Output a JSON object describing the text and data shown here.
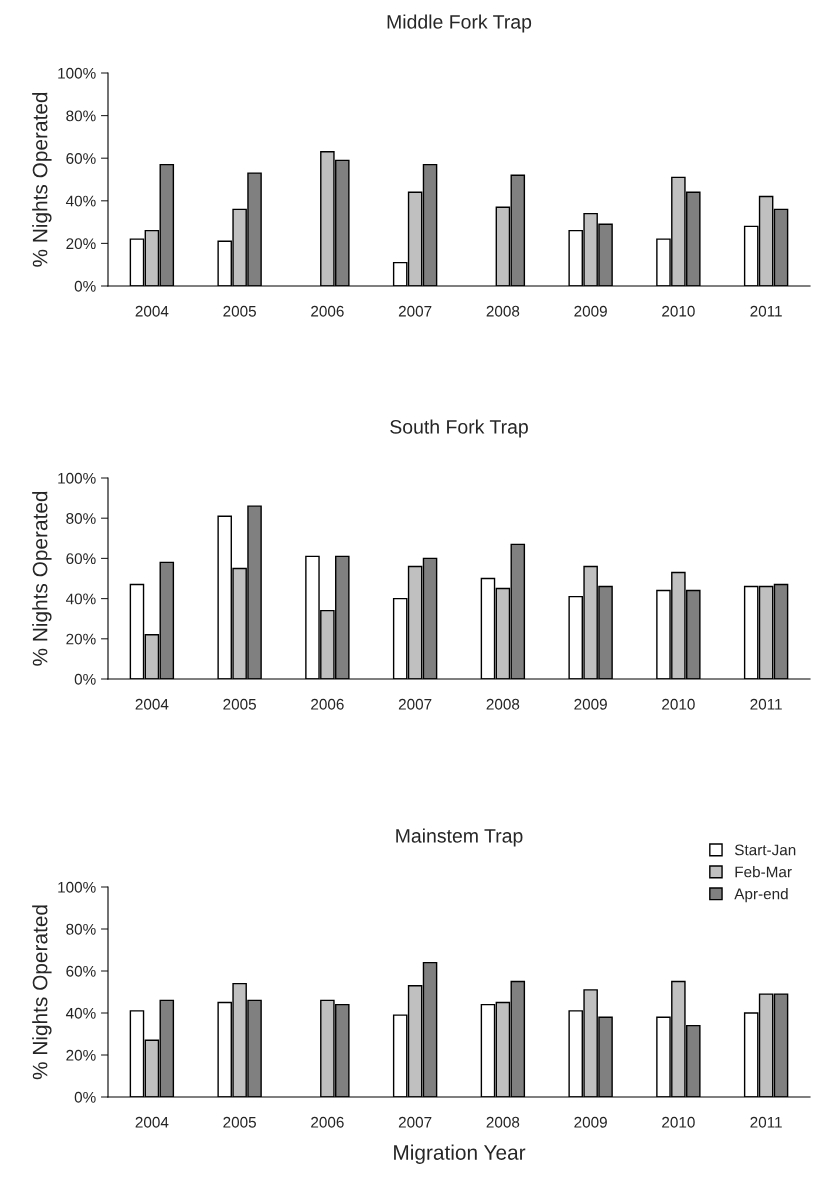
{
  "chart_data": [
    {
      "type": "bar",
      "title": "Middle Fork Trap",
      "ylabel": "% Nights Operated",
      "categories": [
        "2004",
        "2005",
        "2006",
        "2007",
        "2008",
        "2009",
        "2010",
        "2011"
      ],
      "series": [
        {
          "color": "#ffffff",
          "values": [
            22,
            21,
            null,
            11,
            null,
            26,
            22,
            28
          ]
        },
        {
          "color": "#c0c0c0",
          "values": [
            26,
            36,
            63,
            44,
            37,
            34,
            51,
            42
          ]
        },
        {
          "color": "#808080",
          "values": [
            57,
            53,
            59,
            57,
            52,
            29,
            44,
            36
          ]
        }
      ],
      "ylim": [
        0,
        100
      ],
      "yticks": [
        {
          "value": 0,
          "label": "0%"
        },
        {
          "value": 20,
          "label": "20%"
        },
        {
          "value": 40,
          "label": "40%"
        },
        {
          "value": 60,
          "label": "60%"
        },
        {
          "value": 80,
          "label": "80%"
        },
        {
          "value": 100,
          "label": "100%"
        }
      ],
      "grid": false,
      "legend": false
    },
    {
      "type": "bar",
      "title": "South Fork Trap",
      "ylabel": "% Nights Operated",
      "categories": [
        "2004",
        "2005",
        "2006",
        "2007",
        "2008",
        "2009",
        "2010",
        "2011"
      ],
      "series": [
        {
          "color": "#ffffff",
          "values": [
            47,
            81,
            61,
            40,
            50,
            41,
            44,
            46
          ]
        },
        {
          "color": "#c0c0c0",
          "values": [
            22,
            55,
            34,
            56,
            45,
            56,
            53,
            46
          ]
        },
        {
          "color": "#808080",
          "values": [
            58,
            86,
            61,
            60,
            67,
            46,
            44,
            47
          ]
        }
      ],
      "ylim": [
        0,
        100
      ],
      "yticks": [
        {
          "value": 0,
          "label": "0%"
        },
        {
          "value": 20,
          "label": "20%"
        },
        {
          "value": 40,
          "label": "40%"
        },
        {
          "value": 60,
          "label": "60%"
        },
        {
          "value": 80,
          "label": "80%"
        },
        {
          "value": 100,
          "label": "100%"
        }
      ],
      "grid": false,
      "legend": false
    },
    {
      "type": "bar",
      "title": "Mainstem Trap",
      "ylabel": "% Nights Operated",
      "xlabel": "Migration Year",
      "categories": [
        "2004",
        "2005",
        "2006",
        "2007",
        "2008",
        "2009",
        "2010",
        "2011"
      ],
      "series": [
        {
          "name": "Start-Jan",
          "color": "#ffffff",
          "values": [
            41,
            45,
            null,
            39,
            44,
            41,
            38,
            40
          ]
        },
        {
          "name": "Feb-Mar",
          "color": "#c0c0c0",
          "values": [
            27,
            54,
            46,
            53,
            45,
            51,
            55,
            49
          ]
        },
        {
          "name": "Apr-end",
          "color": "#808080",
          "values": [
            46,
            46,
            44,
            64,
            55,
            38,
            34,
            49
          ]
        }
      ],
      "ylim": [
        0,
        100
      ],
      "yticks": [
        {
          "value": 0,
          "label": "0%"
        },
        {
          "value": 20,
          "label": "20%"
        },
        {
          "value": 40,
          "label": "40%"
        },
        {
          "value": 60,
          "label": "60%"
        },
        {
          "value": 80,
          "label": "80%"
        },
        {
          "value": 100,
          "label": "100%"
        }
      ],
      "grid": false,
      "legend": "top right"
    }
  ]
}
